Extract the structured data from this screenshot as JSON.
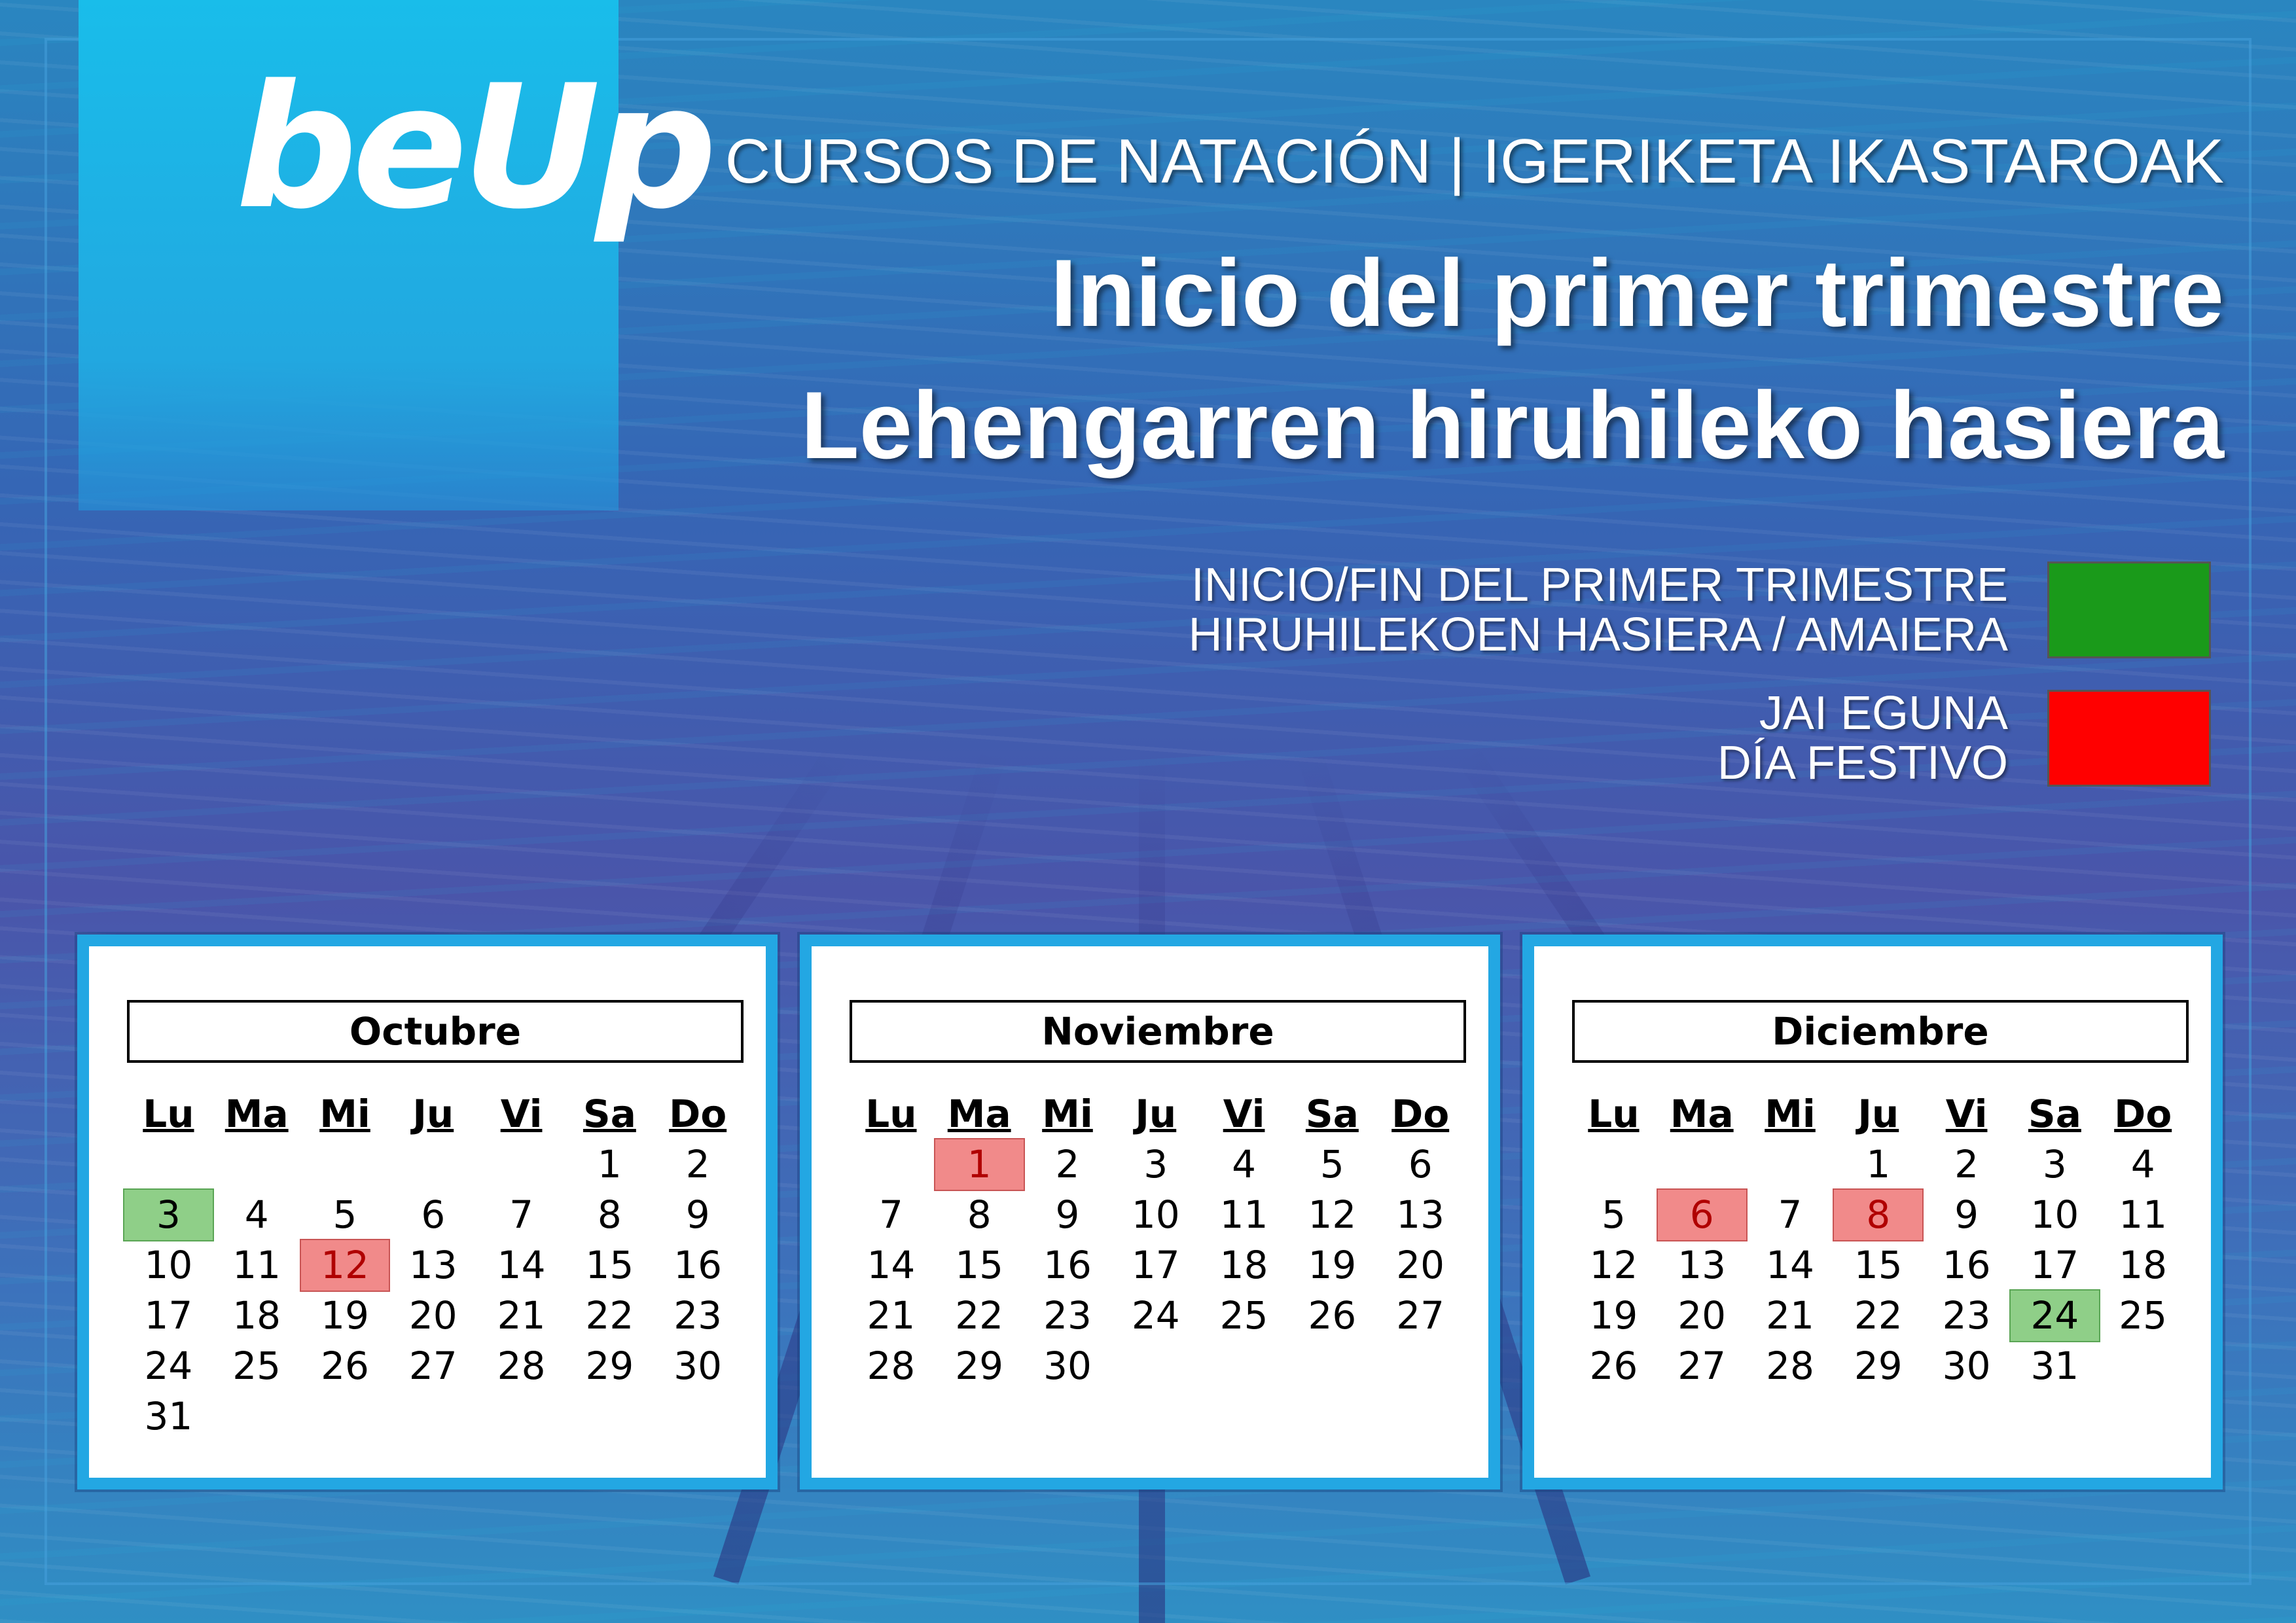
{
  "header": {
    "logo_text": "beUp",
    "line1": "CURSOS DE NATACIÓN | IGERIKETA IKASTAROAK",
    "line2": "Inicio del primer trimestre",
    "line3": "Lehengarren hiruhileko hasiera"
  },
  "legend": [
    {
      "line1": "INICIO/FIN DEL PRIMER TRIMESTRE",
      "line2": "HIRUHILEKOEN HASIERA / AMAIERA",
      "color": "#1a9a1a"
    },
    {
      "line1": "JAI EGUNA",
      "line2": "DÍA FESTIVO",
      "color": "#ff0000"
    }
  ],
  "weekdays": [
    "Lu",
    "Ma",
    "Mi",
    "Ju",
    "Vi",
    "Sa",
    "Do"
  ],
  "calendars": [
    {
      "month": "Octubre",
      "first_weekday_index": 5,
      "days": 31,
      "green_days": [
        3
      ],
      "red_days": [
        12
      ]
    },
    {
      "month": "Noviembre",
      "first_weekday_index": 1,
      "days": 30,
      "green_days": [],
      "red_days": [
        1
      ]
    },
    {
      "month": "Diciembre",
      "first_weekday_index": 3,
      "days": 31,
      "green_days": [
        24
      ],
      "red_days": [
        6,
        8
      ]
    }
  ]
}
